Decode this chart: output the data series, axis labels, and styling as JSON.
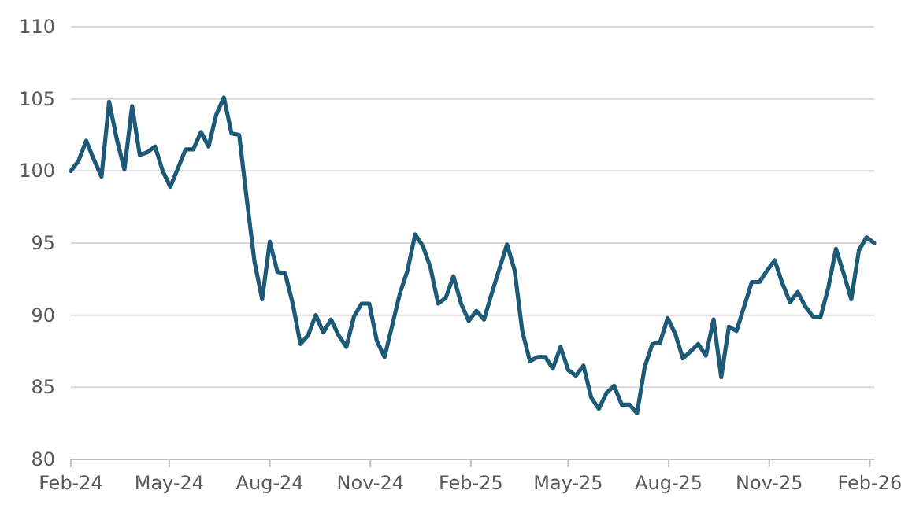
{
  "chart_data": {
    "type": "line",
    "grid": "y",
    "ylim": [
      80,
      110
    ],
    "yticks": [
      80,
      85,
      90,
      95,
      100,
      105,
      110
    ],
    "xlim": [
      "2024-02-01",
      "2026-02-05"
    ],
    "xticks": [
      {
        "value": "2024-02-01",
        "label": "Feb-24"
      },
      {
        "value": "2024-05-01",
        "label": "May-24"
      },
      {
        "value": "2024-08-01",
        "label": "Aug-24"
      },
      {
        "value": "2024-11-01",
        "label": "Nov-24"
      },
      {
        "value": "2025-02-01",
        "label": "Feb-25"
      },
      {
        "value": "2025-05-01",
        "label": "May-25"
      },
      {
        "value": "2025-08-01",
        "label": "Aug-25"
      },
      {
        "value": "2025-11-01",
        "label": "Nov-25"
      },
      {
        "value": "2026-02-01",
        "label": "Feb-26"
      }
    ],
    "x": [
      "2024-02-01",
      "2024-02-08",
      "2024-02-15",
      "2024-02-22",
      "2024-02-29",
      "2024-03-07",
      "2024-03-14",
      "2024-03-21",
      "2024-03-28",
      "2024-04-04",
      "2024-04-11",
      "2024-04-18",
      "2024-04-25",
      "2024-05-02",
      "2024-05-09",
      "2024-05-16",
      "2024-05-23",
      "2024-05-30",
      "2024-06-06",
      "2024-06-13",
      "2024-06-20",
      "2024-06-27",
      "2024-07-04",
      "2024-07-11",
      "2024-07-18",
      "2024-07-25",
      "2024-08-01",
      "2024-08-08",
      "2024-08-15",
      "2024-08-22",
      "2024-08-29",
      "2024-09-05",
      "2024-09-12",
      "2024-09-19",
      "2024-09-26",
      "2024-10-03",
      "2024-10-10",
      "2024-10-17",
      "2024-10-24",
      "2024-10-31",
      "2024-11-07",
      "2024-11-14",
      "2024-11-21",
      "2024-11-28",
      "2024-12-05",
      "2024-12-12",
      "2024-12-19",
      "2024-12-26",
      "2025-01-02",
      "2025-01-09",
      "2025-01-16",
      "2025-01-23",
      "2025-01-30",
      "2025-02-06",
      "2025-02-13",
      "2025-02-20",
      "2025-02-27",
      "2025-03-06",
      "2025-03-13",
      "2025-03-20",
      "2025-03-27",
      "2025-04-03",
      "2025-04-10",
      "2025-04-17",
      "2025-04-24",
      "2025-05-01",
      "2025-05-08",
      "2025-05-15",
      "2025-05-22",
      "2025-05-29",
      "2025-06-05",
      "2025-06-12",
      "2025-06-19",
      "2025-06-26",
      "2025-07-03",
      "2025-07-10",
      "2025-07-17",
      "2025-07-24",
      "2025-07-31",
      "2025-08-07",
      "2025-08-14",
      "2025-08-21",
      "2025-08-28",
      "2025-09-04",
      "2025-09-11",
      "2025-09-18",
      "2025-09-25",
      "2025-10-02",
      "2025-10-09",
      "2025-10-16",
      "2025-10-23",
      "2025-10-30",
      "2025-11-06",
      "2025-11-13",
      "2025-11-20",
      "2025-11-27",
      "2025-12-04",
      "2025-12-11",
      "2025-12-18",
      "2025-12-25",
      "2026-01-01",
      "2026-01-08",
      "2026-01-15",
      "2026-01-22",
      "2026-01-29",
      "2026-02-05"
    ],
    "series": [
      {
        "color": "#1d5a78",
        "values": [
          100,
          100.7,
          102.1,
          100.8,
          99.6,
          104.8,
          102.2,
          100.1,
          104.5,
          101.1,
          101.3,
          101.7,
          100,
          98.9,
          100.2,
          101.5,
          101.5,
          102.7,
          101.7,
          103.9,
          105.1,
          102.6,
          102.5,
          98.0,
          93.7,
          91.1,
          95.1,
          93.0,
          92.9,
          90.8,
          88.0,
          88.6,
          90.0,
          88.8,
          89.7,
          88.6,
          87.8,
          89.9,
          90.8,
          90.8,
          88.2,
          87.1,
          89.3,
          91.5,
          93.1,
          95.6,
          94.8,
          93.3,
          90.8,
          91.2,
          92.7,
          90.8,
          89.6,
          90.3,
          89.7,
          91.5,
          93.2,
          94.9,
          93.1,
          88.9,
          86.8,
          87.1,
          87.1,
          86.3,
          87.8,
          86.2,
          85.8,
          86.5,
          84.3,
          83.5,
          84.6,
          85.1,
          83.8,
          83.8,
          83.2,
          86.4,
          88.0,
          88.1,
          89.8,
          88.7,
          87.0,
          87.5,
          88.0,
          87.2,
          89.7,
          85.7,
          89.2,
          88.9,
          90.6,
          92.3,
          92.3,
          93.1,
          93.8,
          92.2,
          90.9,
          91.6,
          90.6,
          89.9,
          89.9,
          91.9,
          94.6,
          92.9,
          91.1,
          94.5,
          95.4,
          95.0
        ]
      }
    ]
  }
}
